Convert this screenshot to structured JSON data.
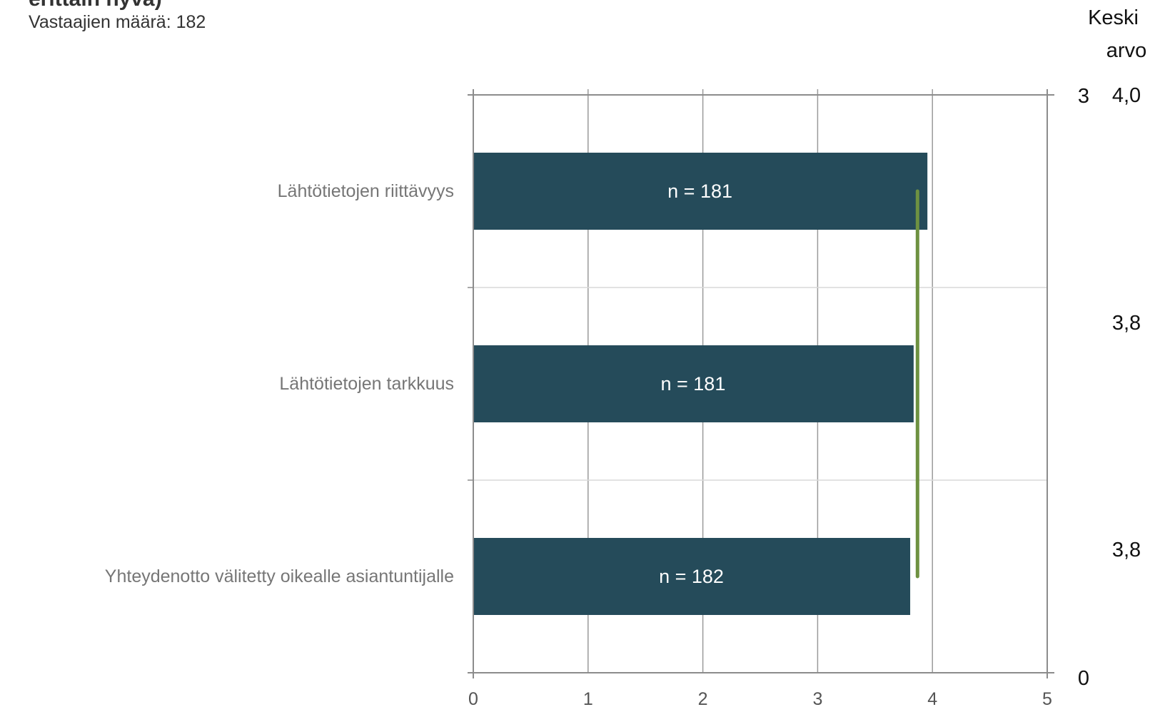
{
  "header": {
    "title_fragment": "erittäin hyvä)",
    "respondents": "Vastaajien määrä: 182",
    "mean_header_line1": "Keski",
    "mean_header_line2": "arvo"
  },
  "colors": {
    "bar": "#254b5a",
    "mean_line": "#6e9141",
    "grid": "#9a9a9a",
    "axis": "#8c8c8c"
  },
  "chart_data": {
    "type": "bar",
    "orientation": "horizontal",
    "categories": [
      "Lähtötietojen riittävyys",
      "Lähtötietojen tarkkuus",
      "Yhteydenotto välitetty oikealle asiantuntijalle"
    ],
    "values": [
      3.95,
      3.83,
      3.8
    ],
    "bar_labels": [
      "n = 181",
      "n = 181",
      "n = 182"
    ],
    "mean_labels": [
      "4,0",
      "3,8",
      "3,8"
    ],
    "overall_mean": 3.87,
    "xlim": [
      0,
      5
    ],
    "xticks": [
      "0",
      "1",
      "2",
      "3",
      "4",
      "5"
    ],
    "secondary_y_ticks": [
      "3",
      "0"
    ],
    "grid": true
  }
}
